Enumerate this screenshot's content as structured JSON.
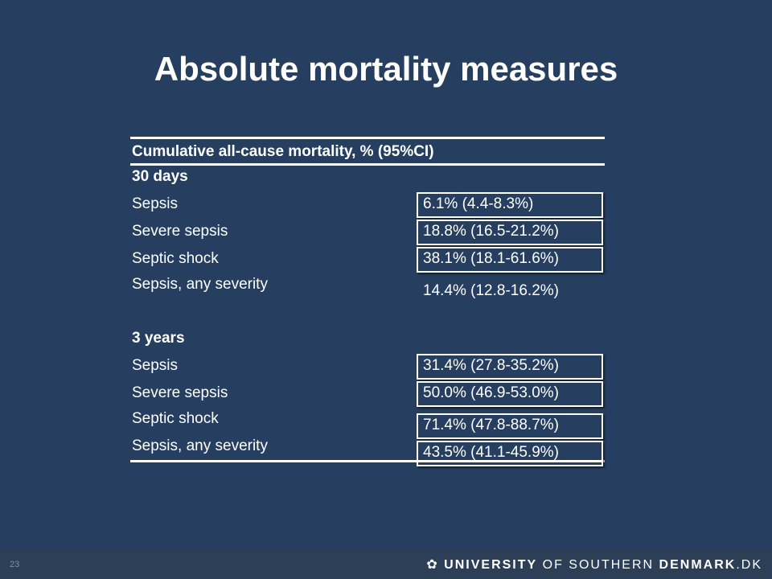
{
  "title": "Absolute mortality measures",
  "table": {
    "header": "Cumulative all-cause mortality, % (95%CI)",
    "sections": [
      {
        "label": "30 days",
        "rows": [
          [
            "Sepsis",
            "6.1% (4.4-8.3%)"
          ],
          [
            "Severe sepsis",
            "18.8% (16.5-21.2%)"
          ],
          [
            "Septic shock",
            "38.1% (18.1-61.6%)"
          ],
          [
            "Sepsis, any severity",
            "14.4% (12.8-16.2%)"
          ]
        ]
      },
      {
        "label": "3 years",
        "rows": [
          [
            "Sepsis",
            "31.4% (27.8-35.2%)"
          ],
          [
            "Severe sepsis",
            "50.0% (46.9-53.0%)"
          ],
          [
            "Septic shock",
            "71.4% (47.8-88.7%)"
          ],
          [
            "Sepsis, any severity",
            "43.5% (41.1-45.9%)"
          ]
        ]
      }
    ]
  },
  "footer": {
    "page_number": "23",
    "logo": {
      "university": "UNIVERSITY",
      "of_southern": "OF SOUTHERN",
      "denmark": "DENMARK",
      "suffix": ".DK"
    }
  }
}
